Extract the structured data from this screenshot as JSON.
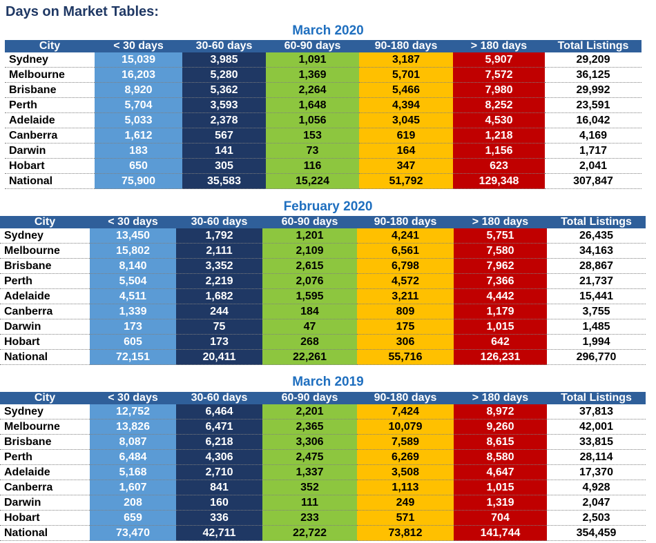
{
  "page_title": "Days on Market Tables:",
  "headers": [
    "City",
    "< 30 days",
    "30-60 days",
    "60-90 days",
    "90-180 days",
    "> 180 days",
    "Total Listings"
  ],
  "colors": {
    "header_bg": "#2f5f9a",
    "lt30": "#5b9bd5",
    "d30_60": "#1f3864",
    "d60_90": "#8dc63f",
    "d90_180": "#ffc000",
    "gt180": "#c00000",
    "section_title": "#1f6fbf"
  },
  "tables": [
    {
      "title": "March 2020",
      "rows": [
        [
          "Sydney",
          "15,039",
          "3,985",
          "1,091",
          "3,187",
          "5,907",
          "29,209"
        ],
        [
          "Melbourne",
          "16,203",
          "5,280",
          "1,369",
          "5,701",
          "7,572",
          "36,125"
        ],
        [
          "Brisbane",
          "8,920",
          "5,362",
          "2,264",
          "5,466",
          "7,980",
          "29,992"
        ],
        [
          "Perth",
          "5,704",
          "3,593",
          "1,648",
          "4,394",
          "8,252",
          "23,591"
        ],
        [
          "Adelaide",
          "5,033",
          "2,378",
          "1,056",
          "3,045",
          "4,530",
          "16,042"
        ],
        [
          "Canberra",
          "1,612",
          "567",
          "153",
          "619",
          "1,218",
          "4,169"
        ],
        [
          "Darwin",
          "183",
          "141",
          "73",
          "164",
          "1,156",
          "1,717"
        ],
        [
          "Hobart",
          "650",
          "305",
          "116",
          "347",
          "623",
          "2,041"
        ],
        [
          "National",
          "75,900",
          "35,583",
          "15,224",
          "51,792",
          "129,348",
          "307,847"
        ]
      ]
    },
    {
      "title": "February 2020",
      "rows": [
        [
          "Sydney",
          "13,450",
          "1,792",
          "1,201",
          "4,241",
          "5,751",
          "26,435"
        ],
        [
          "Melbourne",
          "15,802",
          "2,111",
          "2,109",
          "6,561",
          "7,580",
          "34,163"
        ],
        [
          "Brisbane",
          "8,140",
          "3,352",
          "2,615",
          "6,798",
          "7,962",
          "28,867"
        ],
        [
          "Perth",
          "5,504",
          "2,219",
          "2,076",
          "4,572",
          "7,366",
          "21,737"
        ],
        [
          "Adelaide",
          "4,511",
          "1,682",
          "1,595",
          "3,211",
          "4,442",
          "15,441"
        ],
        [
          "Canberra",
          "1,339",
          "244",
          "184",
          "809",
          "1,179",
          "3,755"
        ],
        [
          "Darwin",
          "173",
          "75",
          "47",
          "175",
          "1,015",
          "1,485"
        ],
        [
          "Hobart",
          "605",
          "173",
          "268",
          "306",
          "642",
          "1,994"
        ],
        [
          "National",
          "72,151",
          "20,411",
          "22,261",
          "55,716",
          "126,231",
          "296,770"
        ]
      ]
    },
    {
      "title": "March 2019",
      "rows": [
        [
          "Sydney",
          "12,752",
          "6,464",
          "2,201",
          "7,424",
          "8,972",
          "37,813"
        ],
        [
          "Melbourne",
          "13,826",
          "6,471",
          "2,365",
          "10,079",
          "9,260",
          "42,001"
        ],
        [
          "Brisbane",
          "8,087",
          "6,218",
          "3,306",
          "7,589",
          "8,615",
          "33,815"
        ],
        [
          "Perth",
          "6,484",
          "4,306",
          "2,475",
          "6,269",
          "8,580",
          "28,114"
        ],
        [
          "Adelaide",
          "5,168",
          "2,710",
          "1,337",
          "3,508",
          "4,647",
          "17,370"
        ],
        [
          "Canberra",
          "1,607",
          "841",
          "352",
          "1,113",
          "1,015",
          "4,928"
        ],
        [
          "Darwin",
          "208",
          "160",
          "111",
          "249",
          "1,319",
          "2,047"
        ],
        [
          "Hobart",
          "659",
          "336",
          "233",
          "571",
          "704",
          "2,503"
        ],
        [
          "National",
          "73,470",
          "42,711",
          "22,722",
          "73,812",
          "141,744",
          "354,459"
        ]
      ]
    }
  ]
}
